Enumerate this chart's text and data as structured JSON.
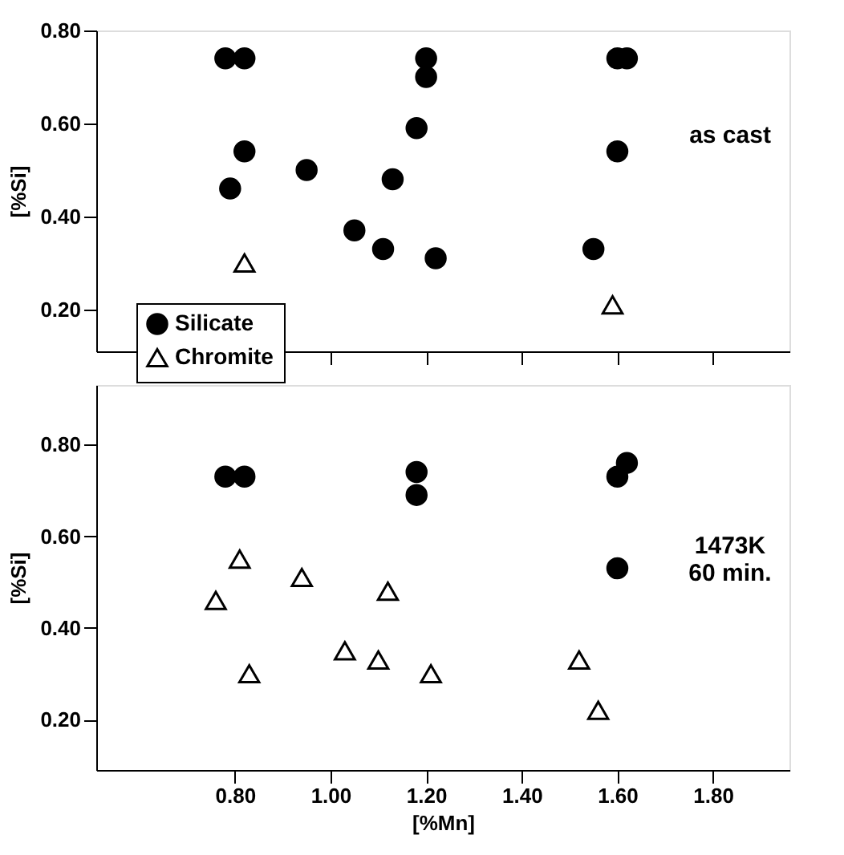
{
  "chart_data": [
    {
      "type": "scatter",
      "ylabel": "[%Si]",
      "xlim": [
        0.51,
        1.96
      ],
      "xticks": [
        {
          "value": 0.8,
          "label": null
        },
        {
          "value": 1.0,
          "label": null
        },
        {
          "value": 1.2,
          "label": null
        },
        {
          "value": 1.4,
          "label": null
        },
        {
          "value": 1.6,
          "label": null
        },
        {
          "value": 1.8,
          "label": null
        }
      ],
      "ylim": [
        0.11,
        0.8
      ],
      "yticks": [
        {
          "value": 0.2,
          "label": "0.20"
        },
        {
          "value": 0.4,
          "label": "0.40"
        },
        {
          "value": 0.6,
          "label": "0.60"
        },
        {
          "value": 0.8,
          "label": "0.80"
        }
      ],
      "tick_labels": "y",
      "grid": false,
      "legend": "bottom left",
      "annotations": [
        "as cast"
      ],
      "series": [
        {
          "name": "Silicate",
          "color": "#000000",
          "marker": "circle",
          "x": [
            0.78,
            0.82,
            0.79,
            0.82,
            0.95,
            1.05,
            1.11,
            1.13,
            1.18,
            1.2,
            1.2,
            1.22,
            1.55,
            1.6,
            1.6,
            1.62
          ],
          "values": [
            0.74,
            0.74,
            0.46,
            0.54,
            0.5,
            0.37,
            0.33,
            0.48,
            0.59,
            0.74,
            0.7,
            0.31,
            0.33,
            0.54,
            0.74,
            0.74
          ]
        },
        {
          "name": "Chromite",
          "color": "#000000",
          "marker": "triangle",
          "x": [
            0.82,
            1.59
          ],
          "values": [
            0.3,
            0.21
          ]
        }
      ]
    },
    {
      "type": "scatter",
      "xlabel": "[%Mn]",
      "ylabel": "[%Si]",
      "xlim": [
        0.51,
        1.96
      ],
      "xticks": [
        {
          "value": 0.8,
          "label": "0.80"
        },
        {
          "value": 1.0,
          "label": "1.00"
        },
        {
          "value": 1.2,
          "label": "1.20"
        },
        {
          "value": 1.4,
          "label": "1.40"
        },
        {
          "value": 1.6,
          "label": "1.60"
        },
        {
          "value": 1.8,
          "label": "1.80"
        }
      ],
      "ylim": [
        0.09,
        0.93
      ],
      "yticks": [
        {
          "value": 0.2,
          "label": "0.20"
        },
        {
          "value": 0.4,
          "label": "0.40"
        },
        {
          "value": 0.6,
          "label": "0.60"
        },
        {
          "value": 0.8,
          "label": "0.80"
        }
      ],
      "grid": false,
      "annotations": [
        "1473K\n60 min."
      ],
      "series": [
        {
          "color": "#000000",
          "marker": "circle",
          "x": [
            0.78,
            0.82,
            1.18,
            1.18,
            1.6,
            1.62,
            1.6
          ],
          "values": [
            0.73,
            0.73,
            0.74,
            0.69,
            0.73,
            0.76,
            0.53
          ]
        },
        {
          "color": "#000000",
          "marker": "triangle",
          "x": [
            0.76,
            0.81,
            0.83,
            0.94,
            1.03,
            1.1,
            1.12,
            1.21,
            1.52,
            1.56
          ],
          "values": [
            0.46,
            0.55,
            0.3,
            0.51,
            0.35,
            0.33,
            0.48,
            0.3,
            0.33,
            0.22
          ]
        }
      ]
    }
  ]
}
